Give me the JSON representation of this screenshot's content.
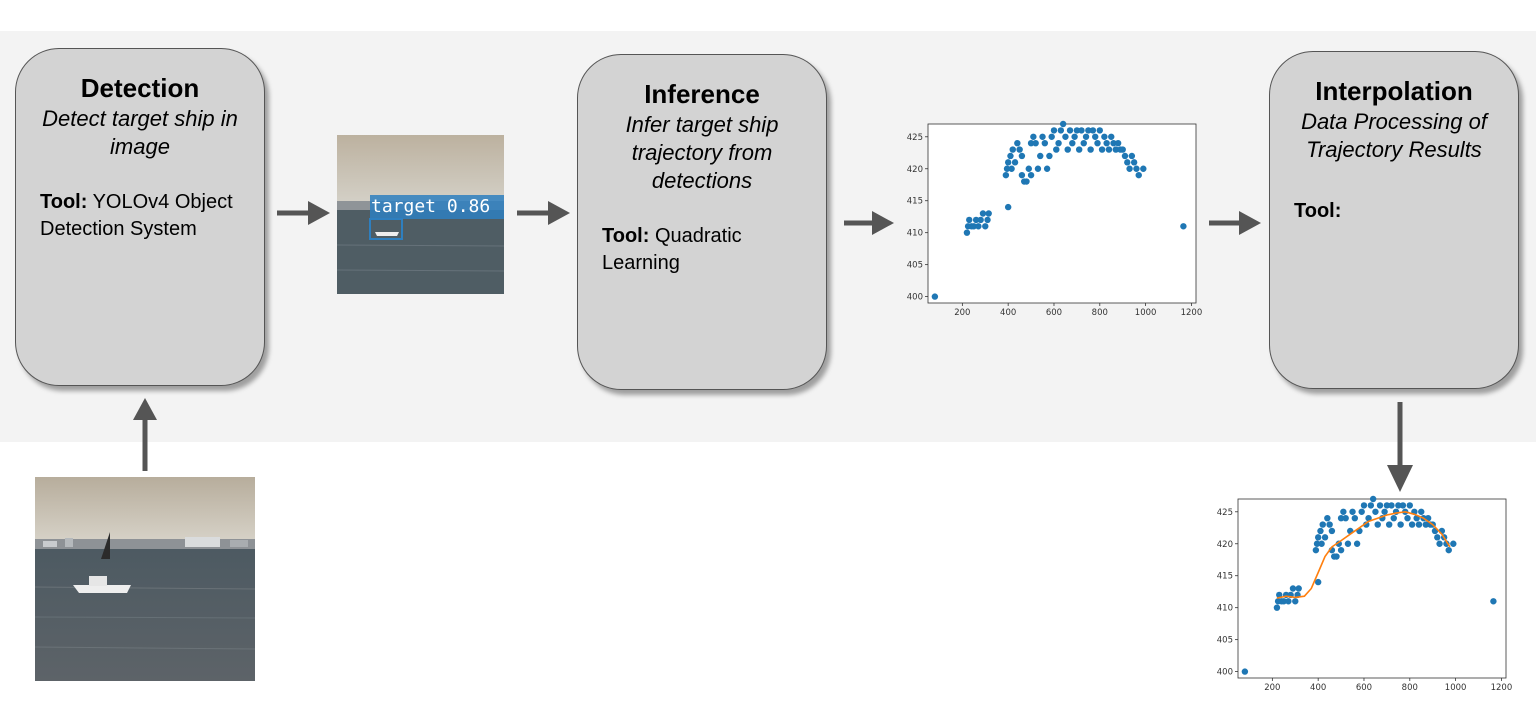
{
  "stages": [
    {
      "title": "Detection",
      "description": "Detect target ship in image",
      "tool_label": "Tool:",
      "tool_value": "YOLOv4 Object Detection System"
    },
    {
      "title": "Inference",
      "description": "Infer target ship trajectory from detections",
      "tool_label": "Tool:",
      "tool_value": "Quadratic Learning"
    },
    {
      "title": "Interpolation",
      "description": "Data Processing of Trajectory Results",
      "tool_label": "Tool:",
      "tool_value": ""
    }
  ],
  "detection_image": {
    "label": "target 0.86"
  },
  "colors": {
    "band": "#f3f3f3",
    "box": "#d3d3d3",
    "arrow": "#555555",
    "points": "#1f77b4",
    "fit_line": "#ff7f0e"
  },
  "chart_data": [
    {
      "type": "scatter",
      "xlim": [
        50,
        1220
      ],
      "ylim": [
        399,
        427
      ],
      "xticks": [
        200,
        400,
        600,
        800,
        1000,
        1200
      ],
      "yticks": [
        400,
        405,
        410,
        415,
        420,
        425
      ],
      "series": [
        {
          "points": [
            [
              80,
              400
            ],
            [
              1165,
              411
            ],
            [
              400,
              414
            ],
            [
              220,
              410
            ],
            [
              225,
              411
            ],
            [
              230,
              412
            ],
            [
              240,
              411
            ],
            [
              250,
              411
            ],
            [
              260,
              412
            ],
            [
              270,
              411
            ],
            [
              280,
              412
            ],
            [
              290,
              413
            ],
            [
              300,
              411
            ],
            [
              310,
              412
            ],
            [
              315,
              413
            ],
            [
              390,
              419
            ],
            [
              395,
              420
            ],
            [
              400,
              421
            ],
            [
              410,
              422
            ],
            [
              415,
              420
            ],
            [
              420,
              423
            ],
            [
              430,
              421
            ],
            [
              440,
              424
            ],
            [
              450,
              423
            ],
            [
              460,
              422
            ],
            [
              460,
              419
            ],
            [
              470,
              418
            ],
            [
              480,
              418
            ],
            [
              490,
              420
            ],
            [
              500,
              424
            ],
            [
              500,
              419
            ],
            [
              510,
              425
            ],
            [
              520,
              424
            ],
            [
              530,
              420
            ],
            [
              540,
              422
            ],
            [
              550,
              425
            ],
            [
              560,
              424
            ],
            [
              570,
              420
            ],
            [
              580,
              422
            ],
            [
              590,
              425
            ],
            [
              600,
              426
            ],
            [
              610,
              423
            ],
            [
              620,
              424
            ],
            [
              630,
              426
            ],
            [
              640,
              427
            ],
            [
              650,
              425
            ],
            [
              660,
              423
            ],
            [
              670,
              426
            ],
            [
              680,
              424
            ],
            [
              690,
              425
            ],
            [
              700,
              426
            ],
            [
              710,
              423
            ],
            [
              720,
              426
            ],
            [
              730,
              424
            ],
            [
              740,
              425
            ],
            [
              750,
              426
            ],
            [
              760,
              423
            ],
            [
              770,
              426
            ],
            [
              780,
              425
            ],
            [
              790,
              424
            ],
            [
              800,
              426
            ],
            [
              810,
              423
            ],
            [
              820,
              425
            ],
            [
              830,
              424
            ],
            [
              840,
              423
            ],
            [
              850,
              425
            ],
            [
              860,
              424
            ],
            [
              870,
              423
            ],
            [
              880,
              424
            ],
            [
              890,
              423
            ],
            [
              900,
              423
            ],
            [
              910,
              422
            ],
            [
              920,
              421
            ],
            [
              930,
              420
            ],
            [
              940,
              422
            ],
            [
              950,
              421
            ],
            [
              960,
              420
            ],
            [
              970,
              419
            ],
            [
              990,
              420
            ]
          ]
        }
      ]
    },
    {
      "type": "scatter",
      "xlim": [
        50,
        1220
      ],
      "ylim": [
        399,
        427
      ],
      "xticks": [
        200,
        400,
        600,
        800,
        1000,
        1200
      ],
      "yticks": [
        400,
        405,
        410,
        415,
        420,
        425
      ],
      "series": [
        {
          "points": [
            [
              80,
              400
            ],
            [
              1165,
              411
            ],
            [
              400,
              414
            ],
            [
              220,
              410
            ],
            [
              225,
              411
            ],
            [
              230,
              412
            ],
            [
              240,
              411
            ],
            [
              250,
              411
            ],
            [
              260,
              412
            ],
            [
              270,
              411
            ],
            [
              280,
              412
            ],
            [
              290,
              413
            ],
            [
              300,
              411
            ],
            [
              310,
              412
            ],
            [
              315,
              413
            ],
            [
              390,
              419
            ],
            [
              395,
              420
            ],
            [
              400,
              421
            ],
            [
              410,
              422
            ],
            [
              415,
              420
            ],
            [
              420,
              423
            ],
            [
              430,
              421
            ],
            [
              440,
              424
            ],
            [
              450,
              423
            ],
            [
              460,
              422
            ],
            [
              460,
              419
            ],
            [
              470,
              418
            ],
            [
              480,
              418
            ],
            [
              490,
              420
            ],
            [
              500,
              424
            ],
            [
              500,
              419
            ],
            [
              510,
              425
            ],
            [
              520,
              424
            ],
            [
              530,
              420
            ],
            [
              540,
              422
            ],
            [
              550,
              425
            ],
            [
              560,
              424
            ],
            [
              570,
              420
            ],
            [
              580,
              422
            ],
            [
              590,
              425
            ],
            [
              600,
              426
            ],
            [
              610,
              423
            ],
            [
              620,
              424
            ],
            [
              630,
              426
            ],
            [
              640,
              427
            ],
            [
              650,
              425
            ],
            [
              660,
              423
            ],
            [
              670,
              426
            ],
            [
              680,
              424
            ],
            [
              690,
              425
            ],
            [
              700,
              426
            ],
            [
              710,
              423
            ],
            [
              720,
              426
            ],
            [
              730,
              424
            ],
            [
              740,
              425
            ],
            [
              750,
              426
            ],
            [
              760,
              423
            ],
            [
              770,
              426
            ],
            [
              780,
              425
            ],
            [
              790,
              424
            ],
            [
              800,
              426
            ],
            [
              810,
              423
            ],
            [
              820,
              425
            ],
            [
              830,
              424
            ],
            [
              840,
              423
            ],
            [
              850,
              425
            ],
            [
              860,
              424
            ],
            [
              870,
              423
            ],
            [
              880,
              424
            ],
            [
              890,
              423
            ],
            [
              900,
              423
            ],
            [
              910,
              422
            ],
            [
              920,
              421
            ],
            [
              930,
              420
            ],
            [
              940,
              422
            ],
            [
              950,
              421
            ],
            [
              960,
              420
            ],
            [
              970,
              419
            ],
            [
              990,
              420
            ]
          ]
        },
        {
          "line": [
            [
              220,
              411.5
            ],
            [
              260,
              411.8
            ],
            [
              300,
              411.6
            ],
            [
              340,
              411.8
            ],
            [
              370,
              413
            ],
            [
              400,
              415.5
            ],
            [
              430,
              418
            ],
            [
              460,
              419.5
            ],
            [
              500,
              420.5
            ],
            [
              540,
              421.5
            ],
            [
              580,
              422.5
            ],
            [
              620,
              423.5
            ],
            [
              660,
              424
            ],
            [
              700,
              424.5
            ],
            [
              740,
              424.8
            ],
            [
              780,
              425
            ],
            [
              820,
              424.6
            ],
            [
              860,
              424
            ],
            [
              900,
              423
            ],
            [
              940,
              421.5
            ],
            [
              975,
              419.5
            ]
          ]
        }
      ]
    }
  ]
}
